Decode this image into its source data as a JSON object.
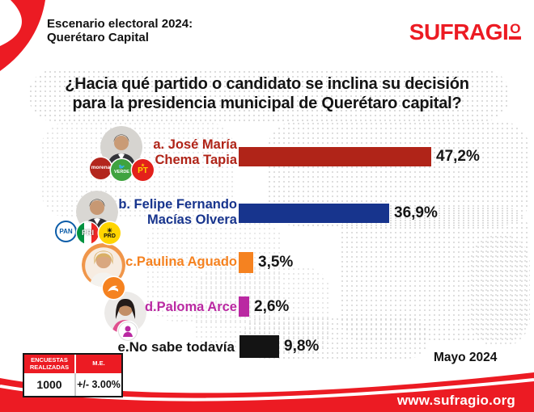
{
  "header": {
    "title_line1": "Escenario electoral 2024:",
    "title_line2": "Querétaro Capital",
    "brand_main": "SUFRAGI",
    "brand_ordinal": "O"
  },
  "question": {
    "line1": "¿Hacia qué partido o candidato se inclina su decisión",
    "line2": "para la presidencia municipal de Querétaro capital?"
  },
  "chart_data": {
    "type": "bar",
    "orientation": "horizontal",
    "title": "¿Hacia qué partido o candidato se inclina su decisión para la presidencia municipal de Querétaro capital?",
    "unit": "%",
    "xlim": [
      0,
      50
    ],
    "categories": [
      "a. José María Chema Tapia",
      "b. Felipe Fernando Macías Olvera",
      "c.Paulina Aguado",
      "d.Paloma Arce",
      "e.No sabe todavía"
    ],
    "values": [
      47.2,
      36.9,
      3.5,
      2.6,
      9.8
    ],
    "value_labels": [
      "47,2%",
      "36,9%",
      "3,5%",
      "2,6%",
      "9,8%"
    ],
    "rows": [
      {
        "id": "a",
        "label_line1": "a. José María",
        "label_line2": "Chema Tapia",
        "value": 47.2,
        "value_label": "47,2%",
        "color": "#b02418",
        "parties": [
          "morena",
          "verde",
          "pt"
        ]
      },
      {
        "id": "b",
        "label_line1": "b. Felipe Fernando",
        "label_line2": "Macías Olvera",
        "value": 36.9,
        "value_label": "36,9%",
        "color": "#17348d",
        "parties": [
          "pan",
          "pri",
          "prd"
        ]
      },
      {
        "id": "c",
        "label_line1": "c.Paulina Aguado",
        "label_line2": "",
        "value": 3.5,
        "value_label": "3,5%",
        "color": "#f58220",
        "parties": [
          "mc"
        ]
      },
      {
        "id": "d",
        "label_line1": "d.Paloma Arce",
        "label_line2": "",
        "value": 2.6,
        "value_label": "2,6%",
        "color": "#ba29a2",
        "parties": [
          "qs"
        ]
      },
      {
        "id": "e",
        "label_line1": "e.No sabe todavía",
        "label_line2": "",
        "value": 9.8,
        "value_label": "9,8%",
        "color": "#141414",
        "parties": []
      }
    ]
  },
  "parties": {
    "morena": {
      "label": "morena",
      "color": "#b3261d"
    },
    "verde": {
      "label": "VERDE",
      "color": "#3fa33f"
    },
    "pt": {
      "label": "PT",
      "color": "#e3201b"
    },
    "pan": {
      "label": "PAN",
      "color": "#0b5ca8"
    },
    "pri": {
      "label": "PRI",
      "colors": [
        "#00923f",
        "#ffffff",
        "#ee2724"
      ]
    },
    "prd": {
      "label": "PRD",
      "color": "#ffd500"
    },
    "mc": {
      "label": "",
      "color": "#f58220"
    },
    "qs": {
      "label": "",
      "color": "#ba29a2"
    }
  },
  "survey_table": {
    "header_col1": "ENCUESTAS REALIZADAS",
    "header_col2": "M.E.",
    "value_col1": "1000",
    "value_col2": "+/- 3.00%"
  },
  "date_label": "Mayo 2024",
  "footer": {
    "url": "www.sufragio.org"
  },
  "colors": {
    "brand_red": "#ec1b23"
  }
}
